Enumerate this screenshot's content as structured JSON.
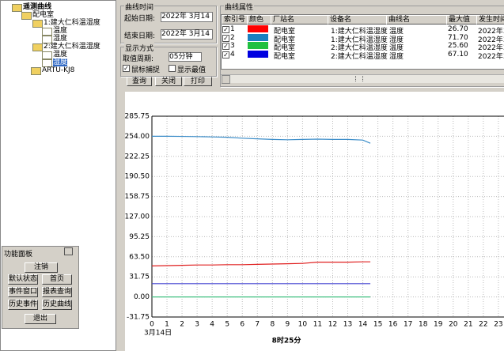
{
  "tree": {
    "root": "遥测曲线",
    "station": "配电室",
    "devices": [
      {
        "name": "1:建大仁科温湿度",
        "curves": [
          "温度",
          "湿度"
        ]
      },
      {
        "name": "2:建大仁科温湿度",
        "curves": [
          "温度",
          "湿度"
        ]
      }
    ],
    "other": "ARTU-KJ8"
  },
  "time_group": {
    "title": "曲线时间",
    "start_label": "起始日期:",
    "start_value": "2022年 3月14",
    "end_label": "结束日期:",
    "end_value": "2022年 3月14"
  },
  "display_group": {
    "title": "显示方式",
    "period_label": "取值周期:",
    "period_value": "05分钟",
    "mouse_capture": "鼠标捕捉",
    "mouse_capture_checked": true,
    "show_extreme": "显示最值",
    "show_extreme_checked": false
  },
  "buttons": [
    "查询",
    "关闭",
    "打印"
  ],
  "curve_props": {
    "title": "曲线属性",
    "columns": [
      "索引号",
      "颜色",
      "厂站名",
      "设备名",
      "曲线名",
      "最大值",
      "发生时间"
    ],
    "rows": [
      {
        "index": "1",
        "color": "#ff0000",
        "station": "配电室",
        "device": "1:建大仁科温湿度",
        "curve": "温度",
        "max": "26.70",
        "time": "2022年3"
      },
      {
        "index": "2",
        "color": "#1a80c0",
        "station": "配电室",
        "device": "1:建大仁科温湿度",
        "curve": "湿度",
        "max": "71.70",
        "time": "2022年3"
      },
      {
        "index": "3",
        "color": "#20c040",
        "station": "配电室",
        "device": "2:建大仁科温湿度",
        "curve": "温度",
        "max": "25.60",
        "time": "2022年3"
      },
      {
        "index": "4",
        "color": "#0000e0",
        "station": "配电室",
        "device": "2:建大仁科温湿度",
        "curve": "湿度",
        "max": "67.10",
        "time": "2022年3"
      }
    ]
  },
  "function_panel": {
    "title": "功能面板",
    "buttons": [
      "注销",
      "默认状态",
      "首页",
      "事件窗口",
      "报表查询",
      "历史事件",
      "历史曲线",
      "退出"
    ]
  },
  "chart_data": {
    "type": "line",
    "date_label": "3月14日",
    "xlabel": "8时25分",
    "grid": true,
    "xlim": [
      0,
      24
    ],
    "xticks": [
      0,
      1,
      2,
      3,
      4,
      5,
      6,
      7,
      8,
      9,
      10,
      11,
      12,
      13,
      14,
      15,
      16,
      17,
      18,
      19,
      20,
      21,
      22,
      23
    ],
    "ylim": [
      -31.75,
      285.75
    ],
    "yticks": [
      -31.75,
      {
        "value": 0,
        "label": "0.00"
      },
      31.75,
      {
        "value": 63.5,
        "label": "63.50"
      },
      95.25,
      {
        "value": 127,
        "label": "127.00"
      },
      158.75,
      {
        "value": 190.5,
        "label": "190.50"
      },
      222.25,
      {
        "value": 254,
        "label": "254.00"
      },
      285.75
    ],
    "x": [
      0,
      1,
      2,
      3,
      4,
      5,
      6,
      7,
      8,
      9,
      10,
      11,
      12,
      13,
      14,
      14.5
    ],
    "series": [
      {
        "color": "#3a8cc8",
        "values": [
          254,
          254,
          253.8,
          253.5,
          253,
          252.5,
          251,
          250,
          249,
          248.5,
          249,
          249.5,
          249,
          249,
          248,
          243
        ]
      },
      {
        "color": "#e02020",
        "values": [
          49,
          49.5,
          50,
          50.5,
          50.5,
          51,
          51,
          51.5,
          52,
          52.5,
          53,
          55,
          55,
          55,
          55.5,
          55.5
        ]
      },
      {
        "color": "#4040d0",
        "values": [
          21,
          21,
          21,
          21,
          21,
          21,
          21,
          21,
          21,
          21,
          21,
          21,
          21,
          21,
          21,
          21
        ]
      },
      {
        "color": "#40c080",
        "values": [
          0,
          0,
          0,
          0,
          0,
          0,
          0,
          0,
          0,
          0,
          0,
          0,
          0,
          0,
          0,
          0
        ]
      }
    ]
  }
}
